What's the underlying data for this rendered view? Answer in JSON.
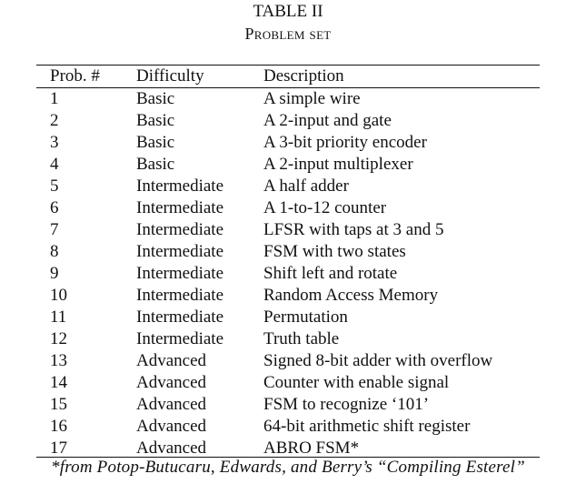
{
  "table": {
    "caption_line1": "TABLE II",
    "caption_line2": "Problem set",
    "headers": [
      "Prob. #",
      "Difficulty",
      "Description"
    ],
    "rows": [
      {
        "num": "1",
        "difficulty": "Basic",
        "description": "A simple wire"
      },
      {
        "num": "2",
        "difficulty": "Basic",
        "description": "A 2-input and gate"
      },
      {
        "num": "3",
        "difficulty": "Basic",
        "description": "A 3-bit priority encoder"
      },
      {
        "num": "4",
        "difficulty": "Basic",
        "description": "A 2-input multiplexer"
      },
      {
        "num": "5",
        "difficulty": "Intermediate",
        "description": "A half adder"
      },
      {
        "num": "6",
        "difficulty": "Intermediate",
        "description": "A 1-to-12 counter"
      },
      {
        "num": "7",
        "difficulty": "Intermediate",
        "description": "LFSR with taps at 3 and 5"
      },
      {
        "num": "8",
        "difficulty": "Intermediate",
        "description": "FSM with two states"
      },
      {
        "num": "9",
        "difficulty": "Intermediate",
        "description": "Shift left and rotate"
      },
      {
        "num": "10",
        "difficulty": "Intermediate",
        "description": "Random Access Memory"
      },
      {
        "num": "11",
        "difficulty": "Intermediate",
        "description": "Permutation"
      },
      {
        "num": "12",
        "difficulty": "Intermediate",
        "description": "Truth table"
      },
      {
        "num": "13",
        "difficulty": "Advanced",
        "description": "Signed 8-bit adder with overflow"
      },
      {
        "num": "14",
        "difficulty": "Advanced",
        "description": "Counter with enable signal"
      },
      {
        "num": "15",
        "difficulty": "Advanced",
        "description": "FSM to recognize ‘101’"
      },
      {
        "num": "16",
        "difficulty": "Advanced",
        "description": "64-bit arithmetic shift register"
      },
      {
        "num": "17",
        "difficulty": "Advanced",
        "description": "ABRO FSM*"
      }
    ],
    "footnote": "*from Potop-Butucaru, Edwards, and Berry’s “Compiling Esterel”"
  }
}
